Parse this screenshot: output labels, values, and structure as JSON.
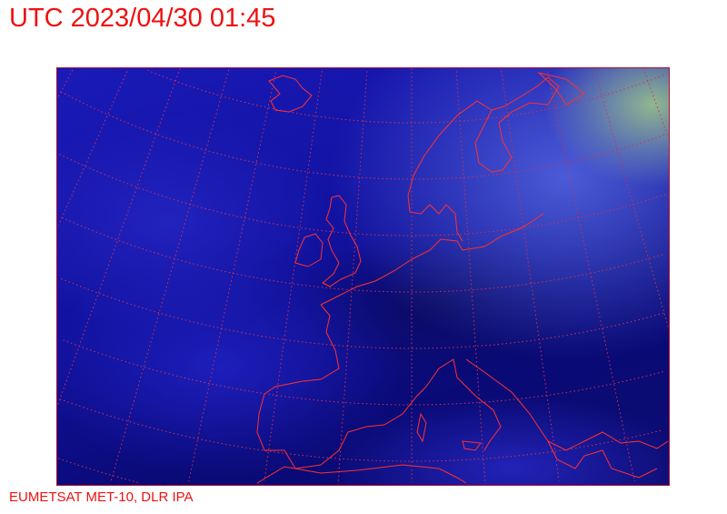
{
  "header": {
    "title": "UTC 2023/04/30 01:45"
  },
  "footer": {
    "credit": "EUMETSAT MET-10, DLR IPA"
  },
  "image": {
    "type": "satellite-imagery",
    "region": "Europe",
    "overlay_color": "#ee2222",
    "text_color": "#ee1111"
  }
}
